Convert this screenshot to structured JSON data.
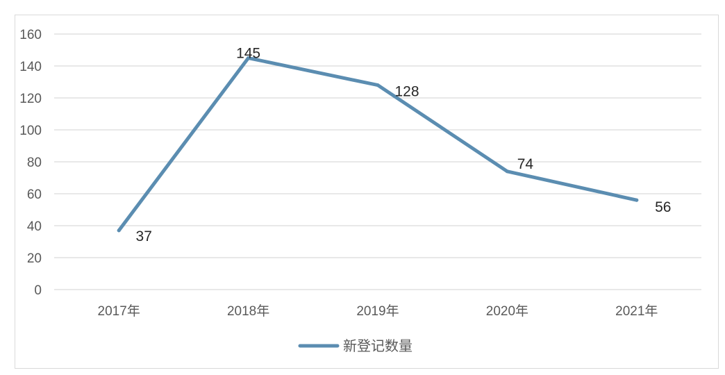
{
  "chart_data": {
    "type": "line",
    "categories": [
      "2017年",
      "2018年",
      "2019年",
      "2020年",
      "2021年"
    ],
    "series": [
      {
        "name": "新登记数量",
        "values": [
          37,
          145,
          128,
          74,
          56
        ],
        "color": "#5b8db1"
      }
    ],
    "ylim": [
      0,
      160
    ],
    "yticks": [
      0,
      20,
      40,
      60,
      80,
      100,
      120,
      140,
      160
    ],
    "grid": true,
    "legend": "bottom",
    "title": "",
    "xlabel": "",
    "ylabel": ""
  }
}
